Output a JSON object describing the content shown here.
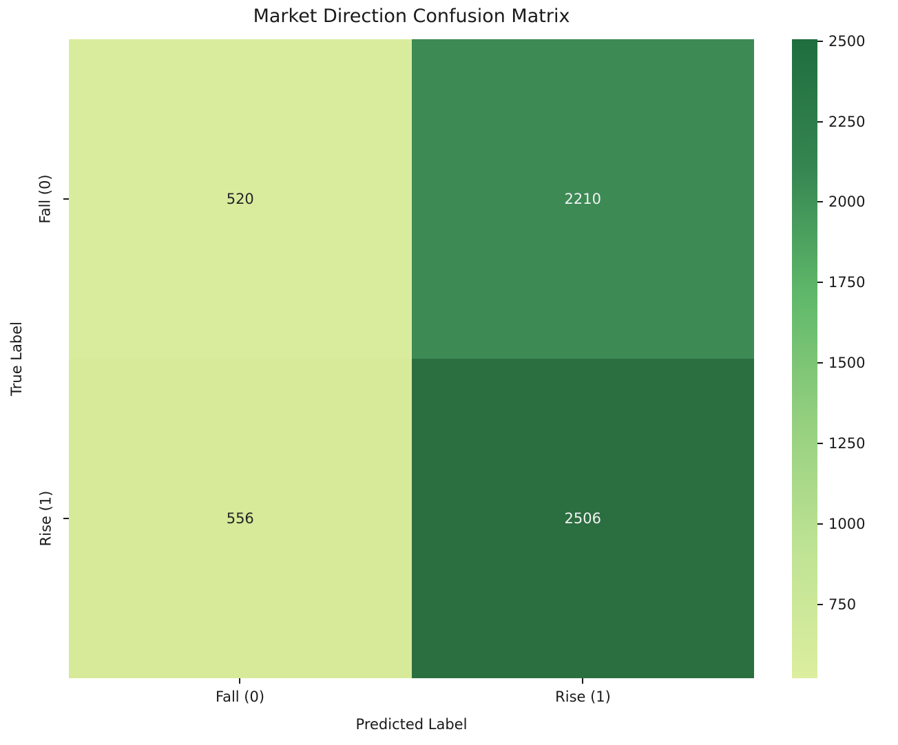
{
  "chart_data": {
    "type": "heatmap",
    "title": "Market Direction Confusion Matrix",
    "xlabel": "Predicted Label",
    "ylabel": "True Label",
    "x_categories": [
      "Fall (0)",
      "Rise (1)"
    ],
    "y_categories": [
      "Fall (0)",
      "Rise (1)"
    ],
    "matrix": [
      [
        520,
        2210
      ],
      [
        556,
        2506
      ]
    ],
    "vmin": 520,
    "vmax": 2506,
    "colorbar_ticks": [
      2500,
      2250,
      2000,
      1750,
      1500,
      1250,
      1000,
      750
    ],
    "colormap_name": "YlGn",
    "cell_colors": [
      [
        "#d9ec9e",
        "#3d8a55"
      ],
      [
        "#d6ea99",
        "#2b6e40"
      ]
    ],
    "cell_text_colors": [
      [
        "#262626",
        "#f2f2f2"
      ],
      [
        "#262626",
        "#f2f2f2"
      ]
    ],
    "colorbar_gradient": [
      {
        "t": 0.0,
        "color": "#dcee9f"
      },
      {
        "t": 0.2,
        "color": "#bfe394"
      },
      {
        "t": 0.4,
        "color": "#95d07f"
      },
      {
        "t": 0.6,
        "color": "#5fb86a"
      },
      {
        "t": 0.8,
        "color": "#358551"
      },
      {
        "t": 1.0,
        "color": "#1f6e3e"
      }
    ],
    "legend": "off",
    "grid": "off",
    "colorbar_position": "right"
  }
}
